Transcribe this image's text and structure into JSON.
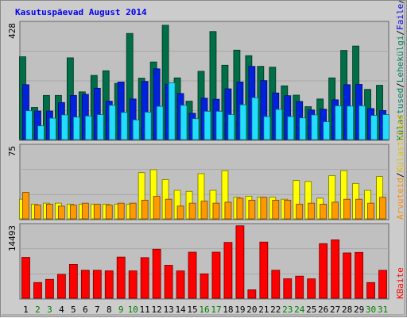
{
  "window": {
    "title": "Kasutuspäevad August 2014"
  },
  "colors": {
    "background": "#cccccc",
    "plot_bg": "#c0c0c0",
    "grid": "#a8a8a8",
    "title": "#0000ee",
    "weekday_tick": "#000000",
    "weekend_tick": "#008000",
    "kulastused": "#006e46",
    "lehekuljed": "#0022dd",
    "failid": "#22ddff",
    "kulastused_lehed_label": "#008060",
    "failid_label": "#0000ee",
    "poordumised_label": "#008060",
    "arvutid": "#ff9900",
    "kulastajad": "#ffff00",
    "arvutid_label": "#ff8800",
    "kulastajad_label": "#e0c000",
    "kbaidid": "#ff0000",
    "kbaidid_label": "#ff0000"
  },
  "chart_data": [
    {
      "type": "bar",
      "name": "hits-panel",
      "y_max_label": "428",
      "ylim": [
        0,
        428
      ],
      "categories": [
        "1",
        "2",
        "3",
        "4",
        "5",
        "6",
        "7",
        "8",
        "9",
        "10",
        "11",
        "12",
        "13",
        "14",
        "15",
        "16",
        "17",
        "18",
        "19",
        "20",
        "21",
        "22",
        "23",
        "24",
        "25",
        "26",
        "27",
        "28",
        "29",
        "30",
        "31"
      ],
      "weekend_days": [
        "2",
        "3",
        "9",
        "10",
        "16",
        "17",
        "23",
        "24",
        "30",
        "31"
      ],
      "legend_parts": [
        "Külastused",
        "Lehekülgi",
        "Faile",
        "Pöördumisi"
      ],
      "series": [
        {
          "name": "Pöördumisi",
          "color_key": "kulastused",
          "values": [
            302,
            117,
            161,
            161,
            298,
            174,
            234,
            251,
            205,
            387,
            224,
            283,
            417,
            225,
            140,
            249,
            394,
            271,
            326,
            306,
            267,
            264,
            196,
            162,
            120,
            148,
            225,
            325,
            341,
            183,
            198
          ]
        },
        {
          "name": "Faile",
          "color_key": "lehekuljed",
          "values": [
            200,
            104,
            104,
            135,
            161,
            165,
            187,
            140,
            210,
            148,
            212,
            258,
            202,
            168,
            96,
            151,
            147,
            185,
            210,
            267,
            215,
            170,
            160,
            139,
            108,
            111,
            145,
            200,
            201,
            113,
            106
          ]
        },
        {
          "name": "Külastused",
          "color_key": "failid",
          "values": [
            105,
            50,
            78,
            90,
            82,
            86,
            91,
            125,
            99,
            72,
            100,
            121,
            207,
            125,
            76,
            103,
            103,
            91,
            127,
            153,
            84,
            110,
            84,
            79,
            90,
            65,
            123,
            122,
            123,
            88,
            91
          ]
        }
      ]
    },
    {
      "type": "bar",
      "name": "visitors-panel",
      "y_max_label": "75",
      "ylim": [
        0,
        75
      ],
      "legend_parts": [
        "Arvuteid",
        "Külastajaid"
      ],
      "series": [
        {
          "name": "Külastajaid",
          "color_key": "kulastajad",
          "values": [
            20,
            15,
            16,
            16,
            15,
            15,
            15,
            15,
            15,
            15,
            47,
            50,
            40,
            29,
            28,
            46,
            29,
            49,
            22,
            23,
            22,
            22,
            20,
            39,
            38,
            21,
            44,
            49,
            36,
            29,
            43
          ]
        },
        {
          "name": "Arvuteid",
          "color_key": "arvutid",
          "values": [
            27,
            14,
            15,
            13,
            14,
            16,
            15,
            14,
            16,
            16,
            19,
            23,
            20,
            13,
            16,
            18,
            16,
            17,
            21,
            19,
            22,
            19,
            19,
            15,
            16,
            15,
            17,
            20,
            20,
            16,
            22
          ]
        }
      ]
    },
    {
      "type": "bar",
      "name": "kbytes-panel",
      "y_max_label": "14493",
      "ylim": [
        0,
        14493
      ],
      "legend_parts": [
        "KBaite"
      ],
      "series": [
        {
          "name": "KBaite",
          "color_key": "kbaidid",
          "values": [
            8024,
            3070,
            3700,
            4680,
            6640,
            5490,
            5490,
            5380,
            8080,
            5370,
            7970,
            9620,
            6470,
            5360,
            9040,
            4780,
            9040,
            10960,
            14230,
            1650,
            11030,
            5490,
            3820,
            4330,
            3800,
            10720,
            11460,
            8890,
            8990,
            3070,
            5480
          ]
        }
      ]
    }
  ]
}
